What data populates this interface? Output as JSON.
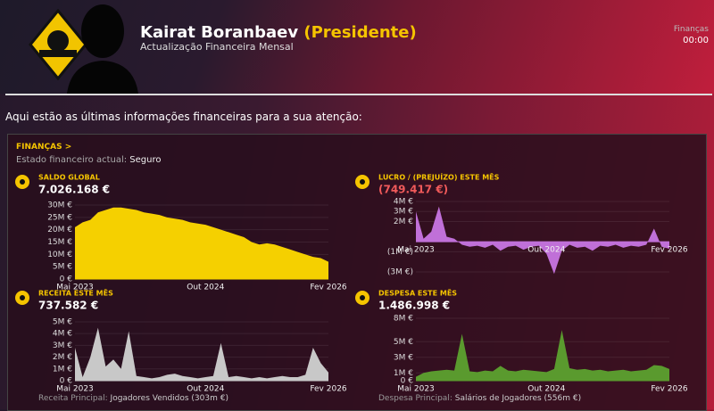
{
  "header": {
    "name": "Kairat Boranbaev",
    "role": "(Presidente)",
    "subtitle": "Actualização Financeira Mensal",
    "section_link": "Finanças",
    "time": "00:00"
  },
  "intro": "Aqui estão as últimas informações financeiras para a sua atenção:",
  "panel": {
    "title": "FINANÇAS >",
    "status_label": "Estado financeiro actual:",
    "status_value": "Seguro"
  },
  "footer": {
    "income_label": "Receita Principal:",
    "income_value": "Jogadores Vendidos (303m €)",
    "expense_label": "Despesa Principal:",
    "expense_value": "Salários de Jogadores (556m €)"
  },
  "chart_data": [
    {
      "type": "area",
      "title": "SALDO GLOBAL",
      "headline": "7.026.168 €",
      "headline_color": "#ffffff",
      "color": "#f5d000",
      "categories": [
        "Mai 2023",
        null,
        null,
        null,
        null,
        null,
        null,
        null,
        null,
        null,
        null,
        null,
        null,
        null,
        null,
        null,
        null,
        "Out 2024",
        null,
        null,
        null,
        null,
        null,
        null,
        null,
        null,
        null,
        null,
        null,
        null,
        null,
        null,
        null,
        "Fev 2026"
      ],
      "values": [
        21,
        23,
        24,
        27,
        28,
        29,
        29,
        28.5,
        28,
        27,
        26.5,
        26,
        25,
        24.5,
        24,
        23,
        22.5,
        22,
        21,
        20,
        19,
        18,
        17,
        15,
        14,
        14.5,
        14,
        13,
        12,
        11,
        10,
        9,
        8.5,
        7
      ],
      "ylim": [
        0,
        30
      ],
      "yticks": [
        {
          "value": 0,
          "label": "0 €"
        },
        {
          "value": 5,
          "label": "5M €"
        },
        {
          "value": 10,
          "label": "10M €"
        },
        {
          "value": 15,
          "label": "15M €"
        },
        {
          "value": 20,
          "label": "20M €"
        },
        {
          "value": 25,
          "label": "25M €"
        },
        {
          "value": 30,
          "label": "30M €"
        }
      ]
    },
    {
      "type": "area",
      "title": "LUCRO / (PREJUÍZO) ESTE MÊS",
      "headline": "(749.417 €)",
      "headline_color": "#f05a5a",
      "color": "#c070d8",
      "categories": [
        "Mai 2023",
        null,
        null,
        null,
        null,
        null,
        null,
        null,
        null,
        null,
        null,
        null,
        null,
        null,
        null,
        null,
        null,
        "Out 2024",
        null,
        null,
        null,
        null,
        null,
        null,
        null,
        null,
        null,
        null,
        null,
        null,
        null,
        null,
        null,
        "Fev 2026"
      ],
      "values": [
        3,
        0.3,
        1,
        3.5,
        0.5,
        0.3,
        -0.3,
        -0.5,
        -0.4,
        -0.6,
        -0.3,
        -0.9,
        -0.5,
        -0.4,
        -0.8,
        -0.5,
        -0.4,
        -1.2,
        -3.2,
        -0.9,
        -0.3,
        -0.6,
        -0.5,
        -0.9,
        -0.4,
        -0.5,
        -0.3,
        -0.6,
        -0.4,
        -0.5,
        -0.3,
        1.3,
        -0.5,
        -0.7
      ],
      "ylim": [
        -3.5,
        4.2
      ],
      "yticks": [
        {
          "value": 4,
          "label": "4M €"
        },
        {
          "value": 3,
          "label": "3M €"
        },
        {
          "value": 2,
          "label": "2M €"
        },
        {
          "value": -1,
          "label": "(1M €)"
        },
        {
          "value": -3,
          "label": "(3M €)"
        }
      ]
    },
    {
      "type": "area",
      "title": "RECEITA ESTE MÊS",
      "headline": "737.582 €",
      "headline_color": "#ffffff",
      "color": "#c8c8c8",
      "categories": [
        "Mai 2023",
        null,
        null,
        null,
        null,
        null,
        null,
        null,
        null,
        null,
        null,
        null,
        null,
        null,
        null,
        null,
        null,
        "Out 2024",
        null,
        null,
        null,
        null,
        null,
        null,
        null,
        null,
        null,
        null,
        null,
        null,
        null,
        null,
        null,
        "Fev 2026"
      ],
      "values": [
        2.8,
        0.3,
        2,
        4.5,
        1.2,
        1.8,
        1,
        4.2,
        0.4,
        0.3,
        0.2,
        0.3,
        0.5,
        0.6,
        0.4,
        0.3,
        0.2,
        0.3,
        0.4,
        3.2,
        0.3,
        0.4,
        0.3,
        0.2,
        0.3,
        0.2,
        0.3,
        0.4,
        0.3,
        0.3,
        0.5,
        2.8,
        1.5,
        0.7
      ],
      "ylim": [
        0,
        5.3
      ],
      "yticks": [
        {
          "value": 0,
          "label": "0 €"
        },
        {
          "value": 1,
          "label": "1M €"
        },
        {
          "value": 2,
          "label": "2M €"
        },
        {
          "value": 3,
          "label": "3M €"
        },
        {
          "value": 4,
          "label": "4M €"
        },
        {
          "value": 5,
          "label": "5M €"
        }
      ]
    },
    {
      "type": "area",
      "title": "DESPESA ESTE MÊS",
      "headline": "1.486.998 €",
      "headline_color": "#ffffff",
      "color": "#5a9a2e",
      "categories": [
        "Mai 2023",
        null,
        null,
        null,
        null,
        null,
        null,
        null,
        null,
        null,
        null,
        null,
        null,
        null,
        null,
        null,
        null,
        "Out 2024",
        null,
        null,
        null,
        null,
        null,
        null,
        null,
        null,
        null,
        null,
        null,
        null,
        null,
        null,
        null,
        "Fev 2026"
      ],
      "values": [
        0.5,
        1,
        1.2,
        1.3,
        1.4,
        1.3,
        6,
        1.2,
        1.1,
        1.3,
        1.2,
        1.9,
        1.3,
        1.2,
        1.4,
        1.3,
        1.2,
        1.1,
        1.5,
        6.5,
        1.6,
        1.4,
        1.5,
        1.3,
        1.4,
        1.2,
        1.3,
        1.4,
        1.2,
        1.3,
        1.4,
        2,
        1.9,
        1.5
      ],
      "ylim": [
        0,
        8
      ],
      "yticks": [
        {
          "value": 0,
          "label": "0 €"
        },
        {
          "value": 1,
          "label": "1M €"
        },
        {
          "value": 3,
          "label": "3M €"
        },
        {
          "value": 5,
          "label": "5M €"
        },
        {
          "value": 8,
          "label": "8M €"
        }
      ]
    }
  ]
}
